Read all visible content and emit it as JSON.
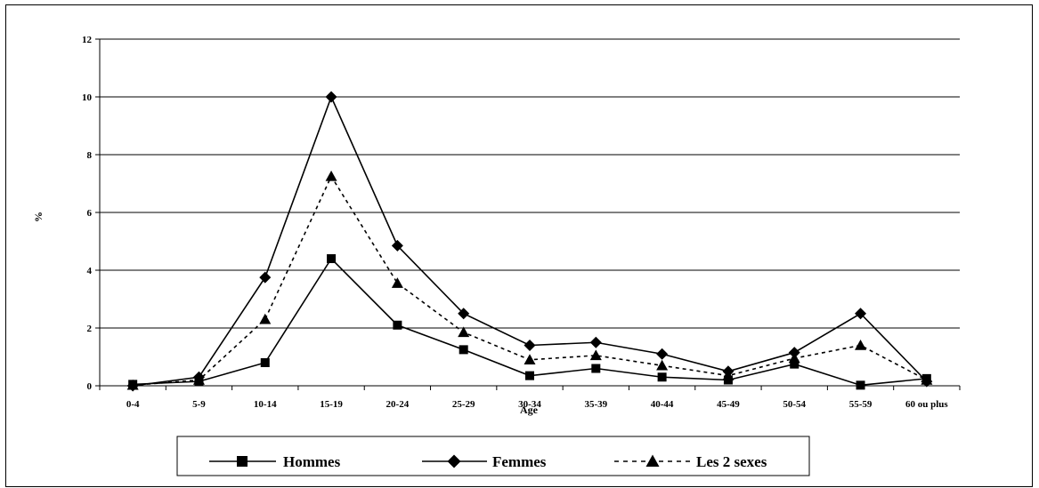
{
  "chart_data": {
    "type": "line",
    "xlabel": "Age",
    "ylabel": "%",
    "ylim": [
      0,
      12
    ],
    "yticks": [
      0,
      2,
      4,
      6,
      8,
      10,
      12
    ],
    "grid": true,
    "legend_position": "bottom",
    "categories": [
      "0-4",
      "5-9",
      "10-14",
      "15-19",
      "20-24",
      "25-29",
      "30-34",
      "35-39",
      "40-44",
      "45-49",
      "50-54",
      "55-59",
      "60 ou plus"
    ],
    "series": [
      {
        "name": "Hommes",
        "marker": "square",
        "dash": false,
        "color": "#000000",
        "values": [
          0.05,
          0.15,
          0.8,
          4.4,
          2.1,
          1.25,
          0.35,
          0.6,
          0.3,
          0.2,
          0.75,
          0.02,
          0.25
        ]
      },
      {
        "name": "Femmes",
        "marker": "diamond",
        "dash": false,
        "color": "#000000",
        "values": [
          0.0,
          0.3,
          3.75,
          10.0,
          4.85,
          2.5,
          1.4,
          1.5,
          1.1,
          0.5,
          1.15,
          2.5,
          0.15
        ]
      },
      {
        "name": "Les 2 sexes",
        "marker": "triangle",
        "dash": true,
        "color": "#000000",
        "values": [
          0.02,
          0.2,
          2.3,
          7.25,
          3.55,
          1.85,
          0.9,
          1.05,
          0.7,
          0.35,
          0.95,
          1.4,
          0.2
        ]
      }
    ]
  }
}
